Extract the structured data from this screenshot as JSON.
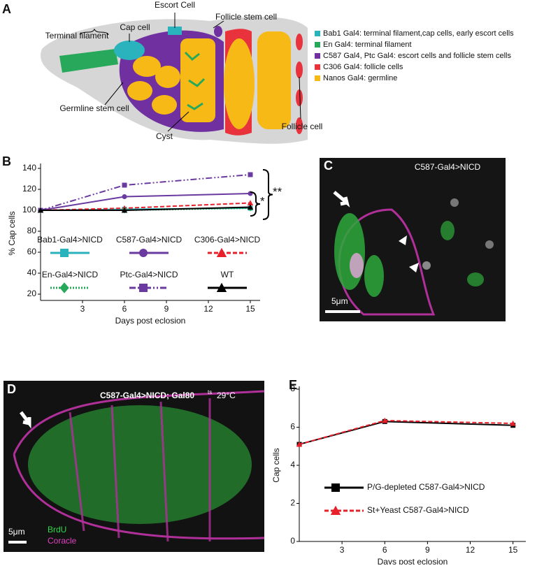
{
  "panels": {
    "a": "A",
    "b": "B",
    "c": "C",
    "d": "D",
    "e": "E"
  },
  "diagram": {
    "labels": {
      "terminal_filament": "Terminal filament",
      "cap_cell": "Cap cell",
      "escort_cell": "Escort Cell",
      "follicle_stem_cell": "Follicle stem cell",
      "germline_stem_cell": "Germline stem cell",
      "cyst": "Cyst",
      "follicle_cell": "Follicle cell"
    },
    "legend": [
      {
        "name": "Bab1 Gal4: terminal filament,cap cells, early escort cells",
        "color": "#2bb3bd"
      },
      {
        "name": "En Gal4: terminal filament",
        "color": "#27a85a"
      },
      {
        "name": "C587 Gal4, Ptc Gal4: escort cells and follicle stem cells",
        "color": "#7030a0"
      },
      {
        "name": "C306 Gal4: follicle cells",
        "color": "#e8323c"
      },
      {
        "name": "Nanos Gal4: germline",
        "color": "#f7b916"
      }
    ]
  },
  "image_c": {
    "title": "C587-Gal4>NICD",
    "scale": "5μm"
  },
  "image_d": {
    "title": "C587-Gal4>NICD; Gal80",
    "title_sup": "ts",
    "title_temp": "29°C",
    "scale": "5μm",
    "stain_1": "BrdU",
    "stain_2": "Coracle"
  },
  "chart_data": [
    {
      "type": "line",
      "xlabel": "Days post eclosion",
      "ylabel": "% Cap cells",
      "x": [
        0,
        6,
        15
      ],
      "xlim": [
        0,
        15.7
      ],
      "xticks": [
        3,
        6,
        9,
        12,
        15
      ],
      "ylim": [
        14,
        142
      ],
      "yticks": [
        20,
        40,
        60,
        80,
        100,
        120,
        140
      ],
      "annotations": [
        "*",
        "**"
      ],
      "series": [
        {
          "name": "Bab1-Gal4>NICD",
          "color": "#2bb3bd",
          "marker": "square",
          "dash": "solid",
          "values": [
            100,
            101,
            102
          ]
        },
        {
          "name": "C587-Gal4>NICD",
          "color": "#6a3aa0",
          "marker": "circle",
          "dash": "solid",
          "values": [
            100,
            113,
            116
          ]
        },
        {
          "name": "C306-Gal4>NICD",
          "color": "#e8202a",
          "marker": "triangle",
          "dash": "dashed",
          "values": [
            100,
            102,
            107
          ]
        },
        {
          "name": "En-Gal4>NICD",
          "color": "#27a85a",
          "marker": "diamond",
          "dash": "dotted",
          "values": [
            100,
            100,
            102
          ]
        },
        {
          "name": "Ptc-Gal4>NICD",
          "color": "#6a3aa0",
          "marker": "square",
          "dash": "dashdot",
          "values": [
            100,
            124,
            134
          ]
        },
        {
          "name": "WT",
          "color": "#000000",
          "marker": "triangle",
          "dash": "solid",
          "values": [
            100,
            100,
            103
          ]
        }
      ]
    },
    {
      "type": "line",
      "xlabel": "Days post eclosion",
      "ylabel": "Cap cells",
      "x": [
        0,
        6,
        15
      ],
      "xlim": [
        0,
        15.9
      ],
      "xticks": [
        3,
        6,
        9,
        12,
        15
      ],
      "ylim": [
        0,
        8
      ],
      "yticks": [
        0,
        2,
        4,
        6,
        8
      ],
      "series": [
        {
          "name": "P/G-depleted C587-Gal4>NICD",
          "color": "#000000",
          "marker": "square",
          "dash": "solid",
          "values": [
            5.1,
            6.3,
            6.1
          ]
        },
        {
          "name": "St+Yeast C587-Gal4>NICD",
          "color": "#e8202a",
          "marker": "triangle",
          "dash": "dashed",
          "values": [
            5.1,
            6.35,
            6.2
          ]
        }
      ]
    }
  ]
}
